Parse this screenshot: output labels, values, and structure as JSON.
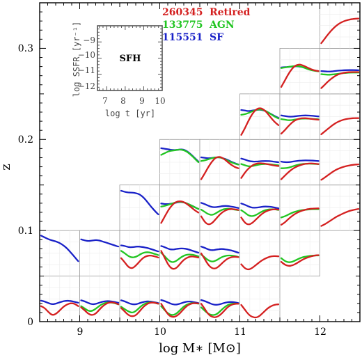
{
  "chart_data": {
    "type": "line",
    "xlabel": "log M∗ [M⊙]",
    "ylabel": "z",
    "xlim": [
      8.5,
      12.5
    ],
    "ylim": [
      0,
      0.35
    ],
    "x_ticks": [
      "9",
      "10",
      "11",
      "12"
    ],
    "y_ticks": [
      "0",
      "0.1",
      "0.2",
      "0.3"
    ],
    "legend": {
      "placement": "top-center",
      "entries": [
        {
          "count": "260345",
          "label": "Retired",
          "color": "#d42020"
        },
        {
          "count": "133775",
          "label": "AGN",
          "color": "#22c522"
        },
        {
          "count": "115551",
          "label": "SF",
          "color": "#1a22c8"
        }
      ]
    },
    "inset": {
      "title": "SFH",
      "xlabel": "log t [yr]",
      "ylabel": "log SSFR [yr⁻¹]",
      "xlim": [
        6.5,
        10
      ],
      "ylim": [
        -12,
        -8
      ],
      "x_ticks": [
        "7",
        "8",
        "9",
        "10"
      ],
      "y_ticks": [
        "−9",
        "−10",
        "−11",
        "−12"
      ]
    },
    "series_colors": {
      "Retired": "#d42020",
      "AGN": "#22c522",
      "SF": "#1a22c8"
    },
    "cells": [
      {
        "m": 8.5,
        "z": 0.0,
        "Retired": [
          -11.2,
          -11.35,
          -11.7,
          -11.95,
          -11.85,
          -11.55,
          -11.25,
          -11.05,
          -10.95,
          -11.0,
          -11.2
        ],
        "SF": [
          -10.75,
          -10.82,
          -10.95,
          -11.05,
          -11.0,
          -10.88,
          -10.8,
          -10.75,
          -10.78,
          -10.85,
          -10.92
        ]
      },
      {
        "m": 9.0,
        "z": 0.0,
        "Retired": [
          -11.3,
          -11.55,
          -11.85,
          -11.95,
          -11.8,
          -11.45,
          -11.15,
          -10.95,
          -10.88,
          -10.92,
          -11.05
        ],
        "AGN": [
          -11.2,
          -11.4,
          -11.6,
          -11.6,
          -11.4,
          -11.15,
          -10.98,
          -10.9,
          -10.9,
          -10.95,
          -11.05
        ],
        "SF": [
          -10.72,
          -10.8,
          -10.95,
          -11.05,
          -11.02,
          -10.9,
          -10.82,
          -10.78,
          -10.8,
          -10.86,
          -10.92
        ]
      },
      {
        "m": 9.5,
        "z": 0.0,
        "Retired": [
          -11.35,
          -11.65,
          -11.95,
          -12.05,
          -11.95,
          -11.6,
          -11.25,
          -11.0,
          -10.9,
          -10.92,
          -11.0
        ],
        "AGN": [
          -11.25,
          -11.45,
          -11.65,
          -11.75,
          -11.6,
          -11.3,
          -11.05,
          -10.92,
          -10.88,
          -10.92,
          -11.0
        ],
        "SF": [
          -10.72,
          -10.8,
          -10.95,
          -11.05,
          -11.05,
          -10.95,
          -10.85,
          -10.8,
          -10.82,
          -10.88,
          -10.95
        ]
      },
      {
        "m": 10.0,
        "z": 0.0,
        "Retired": [
          -11.0,
          -11.5,
          -11.95,
          -12.1,
          -12.05,
          -11.8,
          -11.45,
          -11.15,
          -11.0,
          -10.95,
          -10.98
        ],
        "AGN": [
          -11.2,
          -11.55,
          -11.85,
          -11.95,
          -11.85,
          -11.55,
          -11.25,
          -11.05,
          -10.95,
          -10.95,
          -11.0
        ],
        "SF": [
          -10.7,
          -10.78,
          -10.92,
          -11.05,
          -11.08,
          -11.0,
          -10.9,
          -10.82,
          -10.82,
          -10.88,
          -10.95
        ]
      },
      {
        "m": 10.5,
        "z": 0.0,
        "Retired": [
          -11.0,
          -11.45,
          -11.9,
          -12.1,
          -12.12,
          -11.95,
          -11.65,
          -11.3,
          -11.1,
          -11.0,
          -11.0
        ],
        "AGN": [
          -11.3,
          -11.6,
          -11.85,
          -11.95,
          -11.9,
          -11.65,
          -11.35,
          -11.12,
          -11.0,
          -10.98,
          -11.0
        ],
        "SF": [
          -10.7,
          -10.78,
          -10.92,
          -11.05,
          -11.1,
          -11.05,
          -10.95,
          -10.88,
          -10.85,
          -10.88,
          -10.95
        ]
      },
      {
        "m": 11.0,
        "z": 0.0,
        "Retired": [
          -11.1,
          -11.5,
          -11.9,
          -12.1,
          -12.15,
          -12.0,
          -11.7,
          -11.4,
          -11.2,
          -11.08,
          -11.05
        ]
      },
      {
        "m": 8.5,
        "z": 0.05,
        "SF": [
          -9.15,
          -9.3,
          -9.45,
          -9.55,
          -9.62,
          -9.75,
          -9.95,
          -10.2,
          -10.55,
          -10.9,
          -11.25
        ]
      },
      {
        "m": 9.0,
        "z": 0.05,
        "SF": [
          -9.45,
          -9.55,
          -9.6,
          -9.55,
          -9.5,
          -9.55,
          -9.65,
          -9.75,
          -9.85,
          -9.95,
          -10.05
        ]
      },
      {
        "m": 9.5,
        "z": 0.05,
        "Retired": [
          -11.0,
          -11.35,
          -11.75,
          -11.85,
          -11.6,
          -11.25,
          -10.95,
          -10.8,
          -10.78,
          -10.85,
          -10.95
        ],
        "AGN": [
          -10.4,
          -10.6,
          -10.85,
          -10.95,
          -10.9,
          -10.7,
          -10.55,
          -10.5,
          -10.55,
          -10.65,
          -10.75
        ],
        "SF": [
          -9.95,
          -10.0,
          -10.1,
          -10.1,
          -10.05,
          -10.05,
          -10.1,
          -10.15,
          -10.25,
          -10.35,
          -10.45
        ]
      },
      {
        "m": 10.0,
        "z": 0.05,
        "Retired": [
          -10.4,
          -11.0,
          -11.6,
          -11.9,
          -11.85,
          -11.5,
          -11.15,
          -10.95,
          -10.85,
          -10.88,
          -10.95
        ],
        "AGN": [
          -10.55,
          -10.85,
          -11.2,
          -11.35,
          -11.25,
          -11.0,
          -10.8,
          -10.7,
          -10.7,
          -10.75,
          -10.85
        ],
        "SF": [
          -10.0,
          -10.1,
          -10.25,
          -10.3,
          -10.25,
          -10.2,
          -10.2,
          -10.25,
          -10.35,
          -10.45,
          -10.55
        ]
      },
      {
        "m": 10.5,
        "z": 0.05,
        "Retired": [
          -10.6,
          -11.1,
          -11.6,
          -11.85,
          -11.85,
          -11.6,
          -11.3,
          -11.05,
          -10.92,
          -10.88,
          -10.92
        ],
        "AGN": [
          -10.7,
          -10.95,
          -11.2,
          -11.3,
          -11.2,
          -11.0,
          -10.85,
          -10.78,
          -10.78,
          -10.82,
          -10.9
        ],
        "SF": [
          -10.05,
          -10.15,
          -10.3,
          -10.35,
          -10.3,
          -10.25,
          -10.25,
          -10.3,
          -10.35,
          -10.45,
          -10.55
        ]
      },
      {
        "m": 11.0,
        "z": 0.05,
        "Retired": [
          -11.5,
          -11.85,
          -11.95,
          -11.8,
          -11.55,
          -11.3,
          -11.1,
          -10.95,
          -10.85,
          -10.82,
          -10.85
        ]
      },
      {
        "m": 11.5,
        "z": 0.05,
        "Retired": [
          -11.3,
          -11.55,
          -11.65,
          -11.6,
          -11.45,
          -11.25,
          -11.08,
          -10.95,
          -10.85,
          -10.78,
          -10.75
        ],
        "AGN": [
          -11.0,
          -11.25,
          -11.35,
          -11.3,
          -11.15,
          -11.0,
          -10.9,
          -10.85,
          -10.8,
          -10.78,
          -10.78
        ]
      },
      {
        "m": 9.5,
        "z": 0.1,
        "SF": [
          -9.2,
          -9.3,
          -9.35,
          -9.35,
          -9.4,
          -9.5,
          -9.75,
          -10.1,
          -10.5,
          -10.85,
          -11.15
        ]
      },
      {
        "m": 10.0,
        "z": 0.1,
        "Retired": [
          -11.85,
          -11.3,
          -10.75,
          -10.35,
          -10.12,
          -10.05,
          -10.12,
          -10.3,
          -10.55,
          -10.8,
          -11.0
        ],
        "AGN": [
          -10.5,
          -10.45,
          -10.35,
          -10.25,
          -10.15,
          -10.1,
          -10.15,
          -10.25,
          -10.4,
          -10.55,
          -10.7
        ],
        "SF": [
          -10.25,
          -10.3,
          -10.3,
          -10.25,
          -10.18,
          -10.12,
          -10.15,
          -10.25,
          -10.4,
          -10.55,
          -10.7
        ]
      },
      {
        "m": 10.5,
        "z": 0.1,
        "Retired": [
          -11.3,
          -11.8,
          -12.0,
          -11.85,
          -11.5,
          -11.15,
          -10.9,
          -10.75,
          -10.7,
          -10.72,
          -10.78
        ],
        "AGN": [
          -10.75,
          -10.95,
          -11.15,
          -11.2,
          -11.05,
          -10.85,
          -10.72,
          -10.68,
          -10.7,
          -10.75,
          -10.8
        ],
        "SF": [
          -10.2,
          -10.3,
          -10.45,
          -10.55,
          -10.55,
          -10.5,
          -10.45,
          -10.45,
          -10.5,
          -10.55,
          -10.62
        ]
      },
      {
        "m": 11.0,
        "z": 0.1,
        "Retired": [
          -11.4,
          -11.85,
          -12.0,
          -11.85,
          -11.55,
          -11.25,
          -11.0,
          -10.85,
          -10.75,
          -10.72,
          -10.75
        ],
        "AGN": [
          -10.8,
          -11.0,
          -11.25,
          -11.3,
          -11.2,
          -11.0,
          -10.85,
          -10.75,
          -10.72,
          -10.72,
          -10.78
        ],
        "SF": [
          -10.25,
          -10.35,
          -10.5,
          -10.6,
          -10.6,
          -10.55,
          -10.5,
          -10.5,
          -10.52,
          -10.58,
          -10.65
        ]
      },
      {
        "m": 11.5,
        "z": 0.1,
        "Retired": [
          -12.0,
          -11.8,
          -11.5,
          -11.25,
          -11.05,
          -10.9,
          -10.8,
          -10.72,
          -10.68,
          -10.66,
          -10.65
        ],
        "AGN": [
          -11.4,
          -11.3,
          -11.15,
          -11.0,
          -10.9,
          -10.82,
          -10.78,
          -10.75,
          -10.72,
          -10.72,
          -10.72
        ]
      },
      {
        "m": 12.0,
        "z": 0.1,
        "Retired": [
          -12.1,
          -11.95,
          -11.75,
          -11.55,
          -11.35,
          -11.2,
          -11.05,
          -10.92,
          -10.82,
          -10.75,
          -10.7
        ]
      },
      {
        "m": 10.0,
        "z": 0.15,
        "AGN": [
          -10.0,
          -9.85,
          -9.7,
          -9.65,
          -9.6,
          -9.55,
          -9.6,
          -9.75,
          -10.0,
          -10.3,
          -10.6
        ],
        "SF": [
          -9.45,
          -9.5,
          -9.55,
          -9.6,
          -9.6,
          -9.55,
          -9.55,
          -9.7,
          -9.95,
          -10.25,
          -10.55
        ]
      },
      {
        "m": 10.5,
        "z": 0.15,
        "Retired": [
          -12.0,
          -11.5,
          -10.95,
          -10.5,
          -10.2,
          -10.15,
          -10.3,
          -10.55,
          -10.8,
          -11.0,
          -11.1
        ],
        "AGN": [
          -10.5,
          -10.45,
          -10.35,
          -10.25,
          -10.2,
          -10.2,
          -10.3,
          -10.45,
          -10.6,
          -10.72,
          -10.8
        ],
        "SF": [
          -10.2,
          -10.25,
          -10.28,
          -10.25,
          -10.2,
          -10.2,
          -10.28,
          -10.4,
          -10.55,
          -10.68,
          -10.78
        ]
      },
      {
        "m": 11.0,
        "z": 0.15,
        "Retired": [
          -11.9,
          -11.45,
          -11.1,
          -10.85,
          -10.72,
          -10.68,
          -10.7,
          -10.75,
          -10.82,
          -10.88,
          -10.92
        ],
        "AGN": [
          -10.75,
          -10.85,
          -10.95,
          -10.92,
          -10.85,
          -10.78,
          -10.75,
          -10.75,
          -10.78,
          -10.82,
          -10.85
        ],
        "SF": [
          -10.3,
          -10.38,
          -10.5,
          -10.55,
          -10.55,
          -10.52,
          -10.5,
          -10.5,
          -10.52,
          -10.56,
          -10.6
        ]
      },
      {
        "m": 11.5,
        "z": 0.15,
        "Retired": [
          -12.0,
          -11.7,
          -11.4,
          -11.15,
          -10.98,
          -10.85,
          -10.76,
          -10.72,
          -10.7,
          -10.72,
          -10.75
        ],
        "AGN": [
          -11.1,
          -11.1,
          -11.05,
          -10.95,
          -10.85,
          -10.78,
          -10.74,
          -10.72,
          -10.72,
          -10.74,
          -10.76
        ],
        "SF": [
          -10.55,
          -10.6,
          -10.6,
          -10.55,
          -10.5,
          -10.47,
          -10.45,
          -10.45,
          -10.46,
          -10.48,
          -10.5
        ]
      },
      {
        "m": 12.0,
        "z": 0.15,
        "Retired": [
          -12.05,
          -11.85,
          -11.62,
          -11.4,
          -11.22,
          -11.08,
          -10.98,
          -10.9,
          -10.84,
          -10.8,
          -10.78
        ]
      },
      {
        "m": 11.0,
        "z": 0.2,
        "Retired": [
          -12.1,
          -11.55,
          -10.9,
          -10.35,
          -10.0,
          -9.88,
          -10.0,
          -10.3,
          -10.7,
          -11.05,
          -11.3
        ],
        "AGN": [
          -10.45,
          -10.4,
          -10.3,
          -10.15,
          -10.05,
          -10.0,
          -10.05,
          -10.2,
          -10.4,
          -10.6,
          -10.75
        ],
        "SF": [
          -10.05,
          -10.1,
          -10.15,
          -10.1,
          -10.05,
          -10.02,
          -10.08,
          -10.2,
          -10.38,
          -10.55,
          -10.7
        ]
      },
      {
        "m": 11.5,
        "z": 0.2,
        "Retired": [
          -12.0,
          -11.7,
          -11.35,
          -11.05,
          -10.85,
          -10.75,
          -10.72,
          -10.74,
          -10.78,
          -10.82,
          -10.85
        ],
        "AGN": [
          -10.8,
          -10.85,
          -10.9,
          -10.88,
          -10.82,
          -10.78,
          -10.76,
          -10.76,
          -10.78,
          -10.8,
          -10.82
        ],
        "SF": [
          -10.5,
          -10.55,
          -10.6,
          -10.6,
          -10.56,
          -10.52,
          -10.5,
          -10.5,
          -10.52,
          -10.55,
          -10.58
        ]
      },
      {
        "m": 12.0,
        "z": 0.2,
        "Retired": [
          -12.05,
          -11.8,
          -11.55,
          -11.3,
          -11.1,
          -10.95,
          -10.85,
          -10.78,
          -10.74,
          -10.72,
          -10.72
        ]
      },
      {
        "m": 11.5,
        "z": 0.25,
        "Retired": [
          -11.9,
          -11.35,
          -10.8,
          -10.35,
          -10.1,
          -10.05,
          -10.15,
          -10.3,
          -10.45,
          -10.55,
          -10.6
        ],
        "AGN": [
          -10.35,
          -10.3,
          -10.25,
          -10.2,
          -10.18,
          -10.2,
          -10.3,
          -10.42,
          -10.52,
          -10.58,
          -10.62
        ],
        "SF": [
          -10.3,
          -10.28,
          -10.25,
          -10.22,
          -10.2,
          -10.22,
          -10.3,
          -10.4,
          -10.5,
          -10.56,
          -10.6
        ]
      },
      {
        "m": 12.0,
        "z": 0.25,
        "Retired": [
          -12.0,
          -11.7,
          -11.4,
          -11.15,
          -10.95,
          -10.82,
          -10.74,
          -10.7,
          -10.68,
          -10.68,
          -10.68
        ],
        "AGN": [
          -10.85,
          -10.88,
          -10.9,
          -10.88,
          -10.84,
          -10.8,
          -10.76,
          -10.74,
          -10.72,
          -10.72,
          -10.72
        ],
        "SF": [
          -10.6,
          -10.62,
          -10.64,
          -10.62,
          -10.58,
          -10.55,
          -10.53,
          -10.52,
          -10.52,
          -10.52,
          -10.53
        ]
      },
      {
        "m": 12.0,
        "z": 0.3,
        "Retired": [
          -12.05,
          -11.65,
          -11.25,
          -10.9,
          -10.62,
          -10.4,
          -10.25,
          -10.15,
          -10.08,
          -10.04,
          -10.02
        ]
      }
    ]
  }
}
